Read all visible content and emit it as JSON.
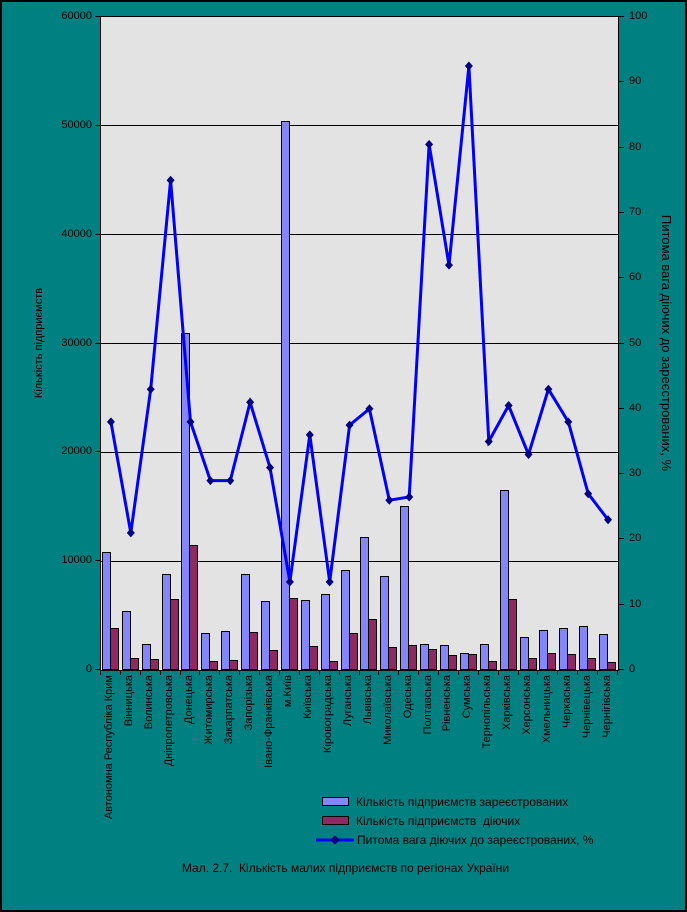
{
  "caption": "Мал. 2.7.  Кількість малих підприємств по регіонах України",
  "colors": {
    "background": "#008080",
    "plot_background": "#E3E3E3",
    "gridline": "#000000",
    "registered_bar": "#8585FC",
    "active_bar": "#8E2A63",
    "line": "#0000FF",
    "line_marker": "#000080",
    "text": "#000000"
  },
  "left_axis": {
    "title": "Кількість підприємств",
    "tick_labels": [
      "60000",
      "50000",
      "40000",
      "30000",
      "20000",
      "10000",
      "0"
    ],
    "min": 0,
    "max": 60000,
    "step": 10000
  },
  "right_axis": {
    "title": "Питома вага діючих до зареєстрованих, %",
    "tick_labels": [
      "100",
      "90",
      "80",
      "70",
      "60",
      "50",
      "40",
      "30",
      "20",
      "10",
      "0"
    ],
    "min": 0,
    "max": 100,
    "step": 10
  },
  "legend": {
    "items": [
      {
        "label": "Кількість підприємств зареєстрованих",
        "swatch": "registered-bar"
      },
      {
        "label": "Кількість підприємств  діючих",
        "swatch": "active-bar"
      },
      {
        "label": "Питома вага діючих до зареєстрованих, %",
        "swatch": "line-marker"
      }
    ]
  },
  "chart_data": {
    "type": "combo (bar + line)",
    "title": "Мал. 2.7. Кількість малих підприємств по регіонах України",
    "grid": true,
    "legend_position": "bottom-right",
    "left_axis_range": [
      0,
      60000
    ],
    "right_axis_range": [
      0,
      100
    ],
    "categories": [
      "Автономна Республіка Крим",
      "Вінницька",
      "Волинська",
      "Дніпропетровська",
      "Донецька",
      "Житомирська",
      "Закарпатська",
      "Запорізька",
      "Івано-Франківська",
      "м.Київ",
      "Київська",
      "Кіровоградська",
      "Луганська",
      "Львівська",
      "Миколаївська",
      "Одеська",
      "Полтавська",
      "Рівненська",
      "Сумська",
      "Тернопільська",
      "Харківська",
      "Херсонська",
      "Хмельницька",
      "Черкаська",
      "Чернівецька",
      "Чернігівська"
    ],
    "series": [
      {
        "name": "Кількість підприємств зареєстрованих",
        "type": "bar",
        "axis": "left",
        "color": "#8585FC",
        "values": [
          10800,
          5400,
          2400,
          8800,
          31000,
          3400,
          3600,
          8800,
          6300,
          50400,
          6400,
          7000,
          9200,
          12200,
          8600,
          15100,
          2400,
          2300,
          1550,
          2400,
          16500,
          3000,
          3700,
          3900,
          4000,
          3300
        ]
      },
      {
        "name": "Кількість підприємств  діючих",
        "type": "bar",
        "axis": "left",
        "color": "#8E2A63",
        "values": [
          3900,
          1100,
          1000,
          6500,
          11500,
          800,
          900,
          3500,
          1800,
          6600,
          2200,
          800,
          3400,
          4700,
          2100,
          2300,
          1900,
          1400,
          1430,
          800,
          6500,
          1100,
          1600,
          1500,
          1100,
          700
        ]
      },
      {
        "name": "Питома вага діючих до зареєстрованих, %",
        "type": "line",
        "axis": "right",
        "color": "#0000FF",
        "marker_color": "#000080",
        "values": [
          38,
          21,
          43,
          75,
          38,
          29,
          29,
          41,
          31,
          13.5,
          36,
          13.5,
          37.5,
          40,
          26,
          26.5,
          80.5,
          62,
          92.5,
          35,
          40.5,
          33,
          43,
          38,
          27,
          23
        ]
      }
    ]
  }
}
